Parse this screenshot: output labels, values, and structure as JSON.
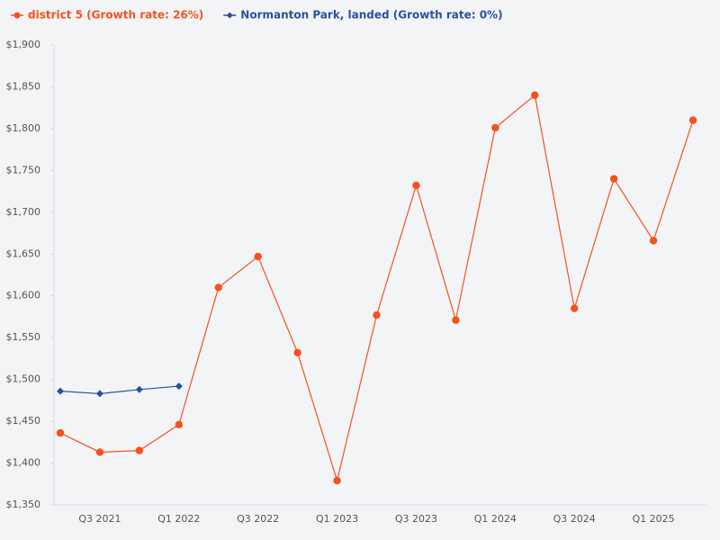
{
  "chart_data": {
    "type": "line",
    "categories": [
      null,
      "Q3 2021",
      null,
      "Q1 2022",
      null,
      "Q3 2022",
      null,
      "Q1 2023",
      null,
      "Q3 2023",
      null,
      "Q1 2024",
      null,
      "Q3 2024",
      null,
      "Q1 2025",
      null
    ],
    "series": [
      {
        "name": "district 5 (Growth rate: 26%)",
        "color": "#f4511e",
        "marker": "circle",
        "values": [
          1436,
          1413,
          1415,
          1446,
          1610,
          1647,
          1532,
          1379,
          1577,
          1732,
          1571,
          1801,
          1840,
          1585,
          1740,
          1666,
          1810
        ]
      },
      {
        "name": "Normanton Park, landed (Growth rate: 0%)",
        "color": "#2b4f9e",
        "marker": "diamond",
        "values": [
          1486,
          1483,
          1488,
          1492,
          null,
          null,
          null,
          null,
          null,
          null,
          null,
          null,
          null,
          null,
          null,
          null,
          null
        ]
      }
    ],
    "ylim": [
      1350,
      1900
    ],
    "yticks": [
      {
        "value": 1350,
        "label": "$1,350"
      },
      {
        "value": 1400,
        "label": "$1,400"
      },
      {
        "value": 1450,
        "label": "$1,450"
      },
      {
        "value": 1500,
        "label": "$1,500"
      },
      {
        "value": 1550,
        "label": "$1,550"
      },
      {
        "value": 1600,
        "label": "$1,600"
      },
      {
        "value": 1650,
        "label": "$1,650"
      },
      {
        "value": 1700,
        "label": "$1,700"
      },
      {
        "value": 1750,
        "label": "$1,750"
      },
      {
        "value": 1800,
        "label": "$1,800"
      },
      {
        "value": 1850,
        "label": "$1,850"
      },
      {
        "value": 1900,
        "label": "$1,900"
      }
    ],
    "grid": false,
    "legend": "top-left"
  }
}
